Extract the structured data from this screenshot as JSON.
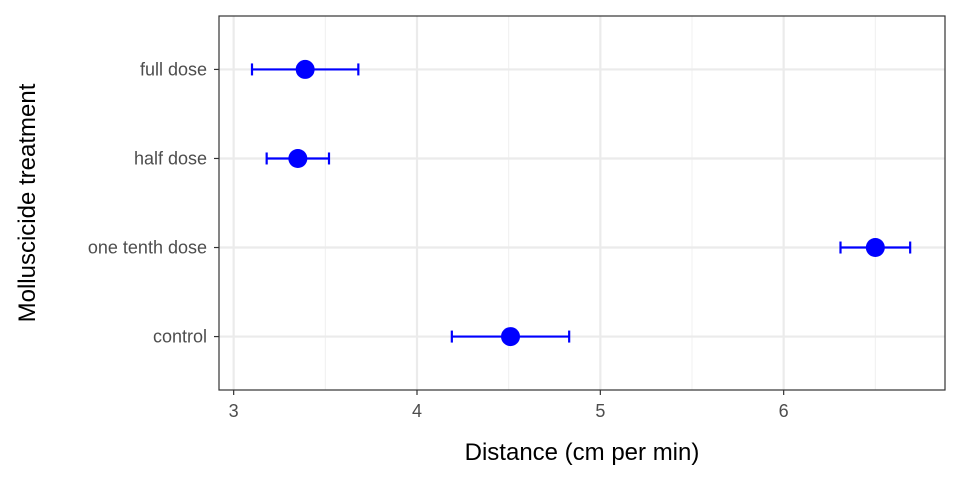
{
  "chart_data": {
    "type": "scatter",
    "subtype": "point-with-horizontal-error-bars",
    "xlabel": "Distance (cm per min)",
    "ylabel": "Molluscicide treatment",
    "xlim": [
      2.92,
      6.88
    ],
    "x_ticks": [
      3,
      4,
      5,
      6
    ],
    "x_minor_ticks": [
      3.5,
      4.5,
      5.5,
      6.5
    ],
    "categories": [
      "control",
      "one tenth dose",
      "half dose",
      "full dose"
    ],
    "points": [
      {
        "category": "control",
        "x": 4.51,
        "xmin": 4.19,
        "xmax": 4.83
      },
      {
        "category": "one tenth dose",
        "x": 6.5,
        "xmin": 6.31,
        "xmax": 6.69
      },
      {
        "category": "half dose",
        "x": 3.35,
        "xmin": 3.18,
        "xmax": 3.52
      },
      {
        "category": "full dose",
        "x": 3.39,
        "xmin": 3.1,
        "xmax": 3.68
      }
    ],
    "colors": {
      "points": "#0000ff",
      "grid_major": "#ebebeb",
      "grid_minor": "#f2f2f2",
      "panel_border": "#333333"
    },
    "grid": true,
    "legend": "none"
  }
}
